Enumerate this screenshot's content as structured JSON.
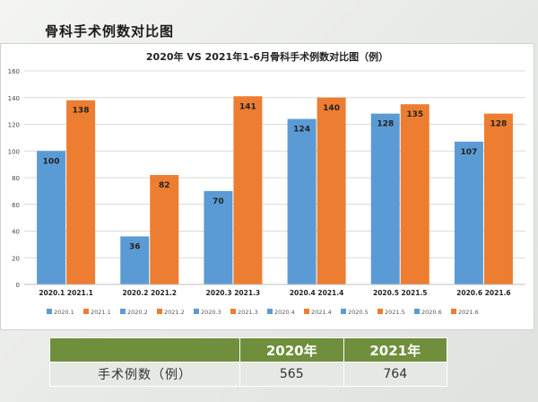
{
  "slide_title": "骨科手术例数对比图",
  "chart_data": {
    "type": "bar",
    "title": "2020年 VS 2021年1-6月骨科手术例数对比图（例）",
    "categories": [
      "2020.1 2021.1",
      "2020.2 2021.2",
      "2020.3 2021.3",
      "2020.4 2021.4",
      "2020.5 2021.5",
      "2020.6 2021.6"
    ],
    "series": [
      {
        "name": "2020",
        "color": "#5b9bd5",
        "values": [
          100,
          36,
          70,
          124,
          128,
          107
        ]
      },
      {
        "name": "2021",
        "color": "#ed7d31",
        "values": [
          138,
          82,
          141,
          140,
          135,
          128
        ]
      }
    ],
    "legend": [
      "2020.1",
      "2021.1",
      "2020.2",
      "2021.2",
      "2020.3",
      "2021.3",
      "2020.4",
      "2021.4",
      "2020.5",
      "2021.5",
      "2020.6",
      "2021.6"
    ],
    "ylim": [
      0,
      160
    ],
    "yticks": [
      0,
      20,
      40,
      60,
      80,
      100,
      120,
      140,
      160
    ],
    "grid": true,
    "legend_position": "bottom"
  },
  "table": {
    "headers": [
      "",
      "2020年",
      "2021年"
    ],
    "row_label": "手术例数（例）",
    "values": [
      "565",
      "764"
    ],
    "header_color": "#6f8f3d"
  }
}
